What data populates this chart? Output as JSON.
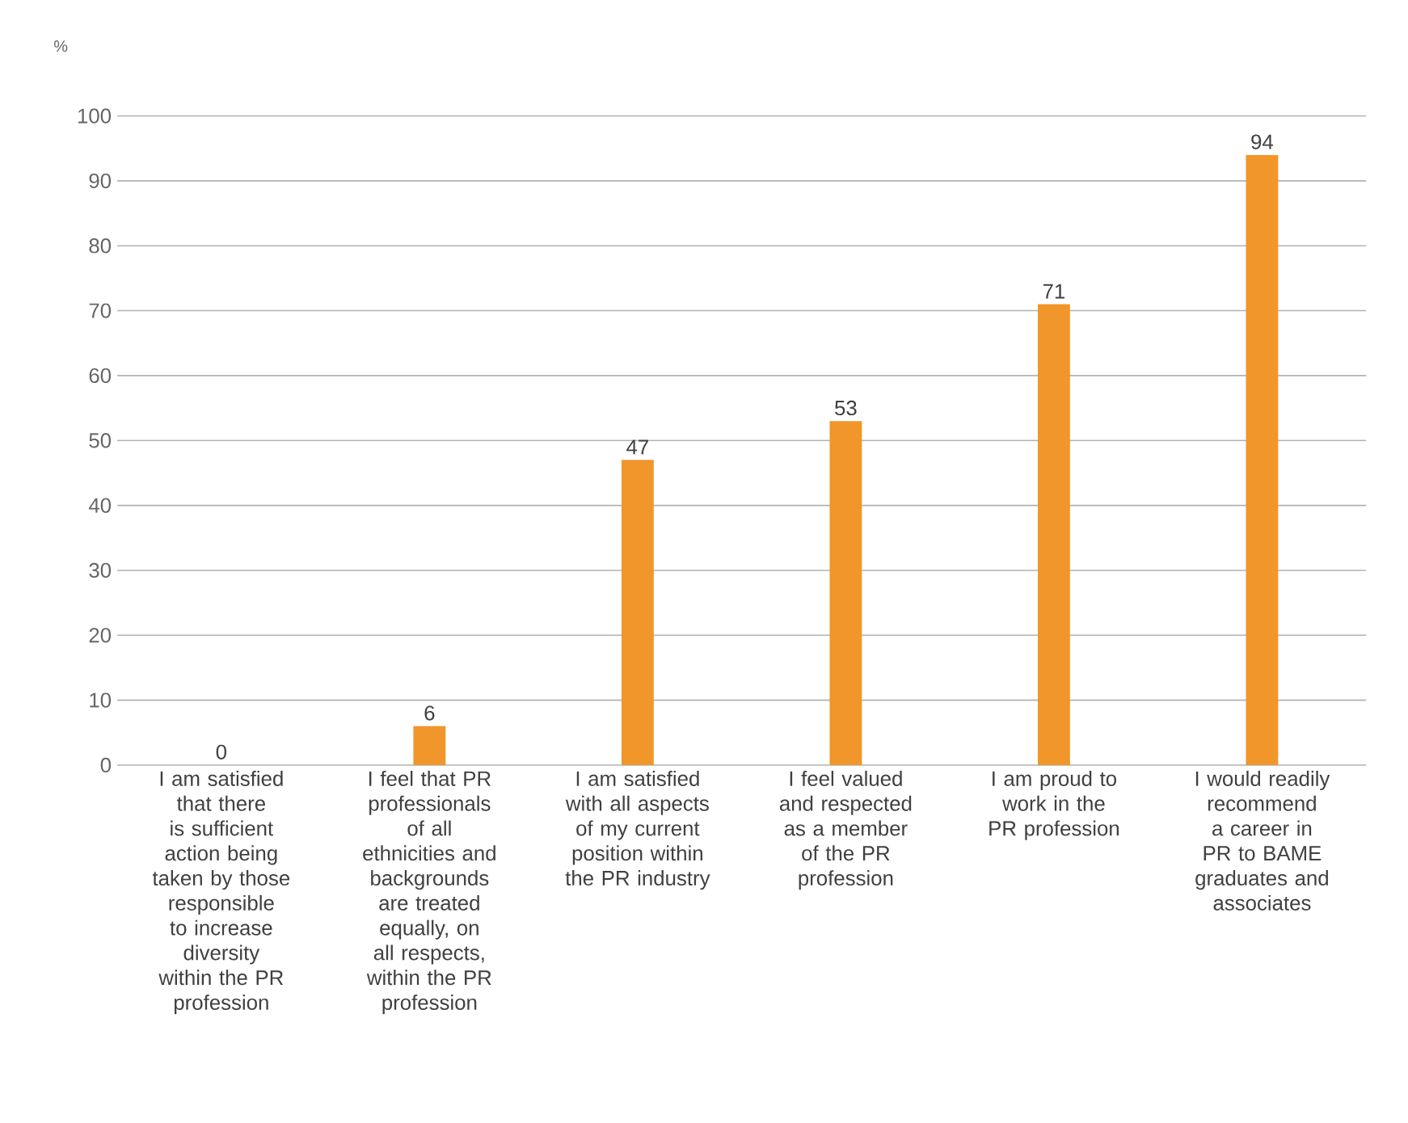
{
  "chart_data": {
    "type": "bar",
    "ylabel": "%",
    "categories": [
      "I am satisfied that there is sufficient action being taken by those responsible to increase diversity within the PR profession",
      "I feel that PR professionals of all ethnicities and backgrounds are treated equally, on all respects, within the PR profession",
      "I am satisfied with all aspects of my current position within the PR industry",
      "I feel valued and respected as a member of the PR profession",
      "I am proud to work in the PR profession",
      "I would readily recommend a career in PR to BAME graduates and associates"
    ],
    "values": [
      0,
      6,
      47,
      53,
      71,
      94
    ],
    "color": "#f0962a",
    "ylim": [
      0,
      100
    ],
    "yticks": [
      0,
      10,
      20,
      30,
      40,
      50,
      60,
      70,
      80,
      90,
      100
    ],
    "grid": "y",
    "data_labels": true
  }
}
